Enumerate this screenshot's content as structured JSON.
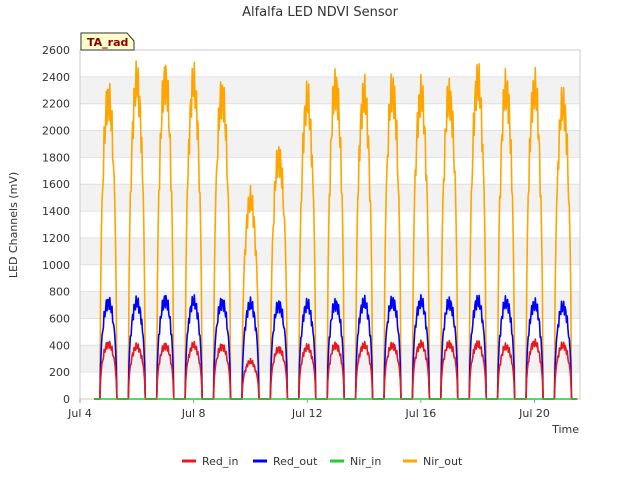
{
  "chart_data": {
    "type": "line",
    "title": "Alfalfa LED NDVI Sensor",
    "xlabel": "Time",
    "ylabel": "LED Channels (mV)",
    "site_label": "TA_rad",
    "x_range_days": [
      4,
      21.6
    ],
    "ylim": [
      0,
      2600
    ],
    "y_ticks": [
      0,
      200,
      400,
      600,
      800,
      1000,
      1200,
      1400,
      1600,
      1800,
      2000,
      2200,
      2400,
      2600
    ],
    "x_ticks": [
      {
        "day": 4,
        "label": "Jul 4"
      },
      {
        "day": 8,
        "label": "Jul 8"
      },
      {
        "day": 12,
        "label": "Jul 12"
      },
      {
        "day": 16,
        "label": "Jul 16"
      },
      {
        "day": 20,
        "label": "Jul 20"
      }
    ],
    "legend_position": "bottom",
    "days": [
      5,
      6,
      7,
      8,
      9,
      10,
      11,
      12,
      13,
      14,
      15,
      16,
      17,
      18,
      19,
      20,
      21
    ],
    "series": [
      {
        "name": "Red_in",
        "color": "#e41a1c",
        "daily_peaks": [
          440,
          420,
          425,
          430,
          420,
          300,
          400,
          415,
          430,
          430,
          430,
          440,
          440,
          440,
          420,
          450,
          430
        ]
      },
      {
        "name": "Red_out",
        "color": "#0000ff",
        "daily_peaks": [
          775,
          770,
          790,
          780,
          770,
          760,
          750,
          755,
          760,
          775,
          780,
          780,
          770,
          785,
          775,
          760,
          740
        ]
      },
      {
        "name": "Nir_in",
        "color": "#2cc92c",
        "daily_peaks": [
          0,
          0,
          0,
          0,
          0,
          0,
          0,
          0,
          0,
          0,
          0,
          0,
          0,
          0,
          0,
          0,
          0
        ]
      },
      {
        "name": "Nir_out",
        "color": "#ffa500",
        "daily_peaks": [
          2410,
          2530,
          2550,
          2520,
          2430,
          1590,
          1930,
          2390,
          2500,
          2430,
          2470,
          2430,
          2420,
          2540,
          2480,
          2490,
          2360
        ]
      }
    ]
  }
}
